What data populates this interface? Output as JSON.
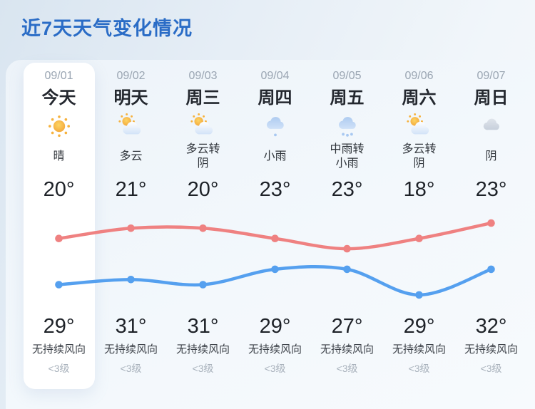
{
  "title": "近7天天气变化情况",
  "days": [
    {
      "date": "09/01",
      "day": "今天",
      "icon": "sun",
      "condition": "晴",
      "low": "20°",
      "high": "29°",
      "wind": "无持续风向",
      "wind_level": "<3级",
      "highlighted": true
    },
    {
      "date": "09/02",
      "day": "明天",
      "icon": "sun-cloud",
      "condition": "多云",
      "low": "21°",
      "high": "31°",
      "wind": "无持续风向",
      "wind_level": "<3级",
      "highlighted": false
    },
    {
      "date": "09/03",
      "day": "周三",
      "icon": "sun-cloud",
      "condition": "多云转阴",
      "low": "20°",
      "high": "31°",
      "wind": "无持续风向",
      "wind_level": "<3级",
      "highlighted": false
    },
    {
      "date": "09/04",
      "day": "周四",
      "icon": "cloud-light-rain",
      "condition": "小雨",
      "low": "23°",
      "high": "29°",
      "wind": "无持续风向",
      "wind_level": "<3级",
      "highlighted": false
    },
    {
      "date": "09/05",
      "day": "周五",
      "icon": "cloud-rain",
      "condition": "中雨转小雨",
      "low": "23°",
      "high": "27°",
      "wind": "无持续风向",
      "wind_level": "<3级",
      "highlighted": false
    },
    {
      "date": "09/06",
      "day": "周六",
      "icon": "sun-cloud",
      "condition": "多云转阴",
      "low": "18°",
      "high": "29°",
      "wind": "无持续风向",
      "wind_level": "<3级",
      "highlighted": false
    },
    {
      "date": "09/07",
      "day": "周日",
      "icon": "cloud",
      "condition": "阴",
      "low": "23°",
      "high": "32°",
      "wind": "无持续风向",
      "wind_level": "<3级",
      "highlighted": false
    }
  ],
  "chart_data": {
    "type": "line",
    "categories": [
      "09/01",
      "09/02",
      "09/03",
      "09/04",
      "09/05",
      "09/06",
      "09/07"
    ],
    "series": [
      {
        "name": "high",
        "color": "#ef8181",
        "values": [
          29,
          31,
          31,
          29,
          27,
          29,
          32
        ]
      },
      {
        "name": "low",
        "color": "#55a0ef",
        "values": [
          20,
          21,
          20,
          23,
          23,
          18,
          23
        ]
      }
    ],
    "title": "近7天天气变化情况",
    "ylim": [
      18,
      32
    ],
    "grid": false,
    "legend": "none"
  },
  "colors": {
    "title": "#2a6cc6",
    "high_line": "#ef8181",
    "low_line": "#55a0ef",
    "card_bg": "#ffffff"
  }
}
